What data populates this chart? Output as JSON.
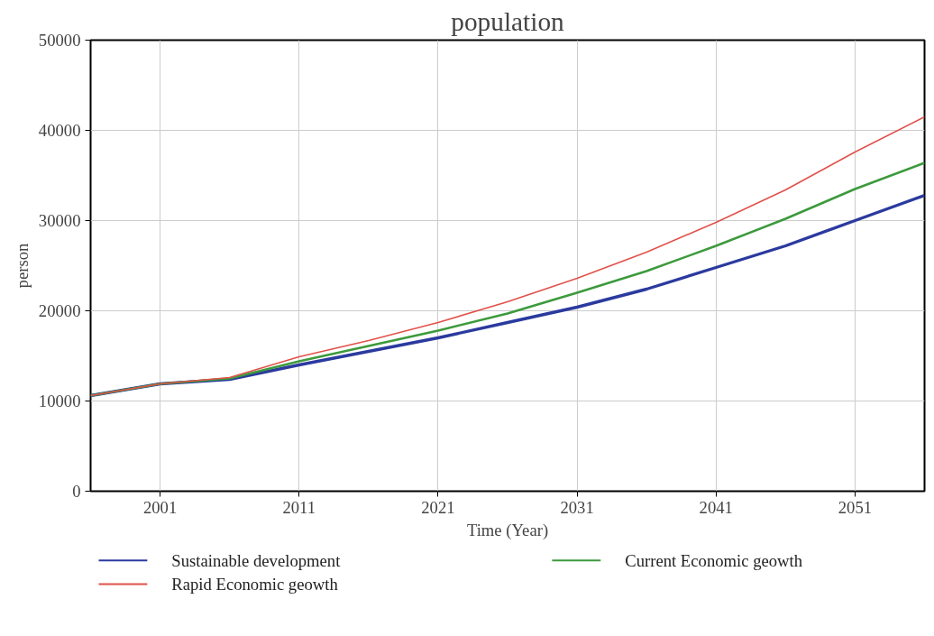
{
  "chart_data": {
    "type": "line",
    "title": "population",
    "xlabel": "Time (Year)",
    "ylabel": "person",
    "x": [
      1996,
      2001,
      2006,
      2011,
      2016,
      2021,
      2026,
      2031,
      2036,
      2041,
      2046,
      2051,
      2056
    ],
    "series": [
      {
        "name": "Sustainable development",
        "color": "#2b3a9e",
        "values": [
          10600,
          11900,
          12400,
          14000,
          15500,
          17000,
          18700,
          20400,
          22400,
          24800,
          27200,
          30000,
          32800
        ]
      },
      {
        "name": "Current Economic geowth",
        "color": "#3c9a3c",
        "values": [
          10600,
          11900,
          12500,
          14400,
          16100,
          17800,
          19700,
          22000,
          24400,
          27200,
          30200,
          33500,
          36400
        ]
      },
      {
        "name": "Rapid Economic geowth",
        "color": "#e0524a",
        "values": [
          10600,
          11900,
          12600,
          14900,
          16700,
          18700,
          21000,
          23600,
          26500,
          29800,
          33400,
          37600,
          41500
        ]
      }
    ],
    "xlim": [
      1996,
      2056
    ],
    "ylim": [
      0,
      50000
    ],
    "xticks": [
      2001,
      2011,
      2021,
      2031,
      2041,
      2051
    ],
    "yticks": [
      0,
      10000,
      20000,
      30000,
      40000,
      50000
    ],
    "grid": true,
    "legend": "bottom",
    "marker": "none",
    "line_style": "solid"
  }
}
